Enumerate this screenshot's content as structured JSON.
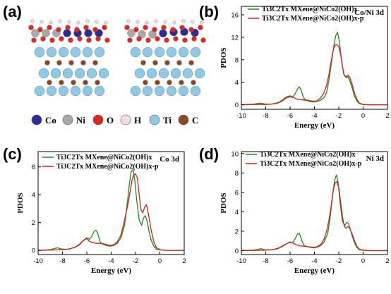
{
  "panels": {
    "a": {
      "label": "(a)",
      "legend": [
        {
          "symbol": "Co",
          "color": "#2b2b9a"
        },
        {
          "symbol": "Ni",
          "color": "#a9a9a9"
        },
        {
          "symbol": "O",
          "color": "#e0281e"
        },
        {
          "symbol": "H",
          "color": "#f2dede"
        },
        {
          "symbol": "Ti",
          "color": "#8ecae6"
        },
        {
          "symbol": "C",
          "color": "#8b4a24"
        }
      ]
    }
  },
  "chart_data": [
    {
      "id": "b",
      "panel_label": "(b)",
      "type": "line",
      "element_label": "Co/Ni 3d",
      "xlabel": "Energy (eV)",
      "ylabel": "PDOS",
      "xlim": [
        -10,
        2
      ],
      "ylim": [
        -0.8,
        17.5
      ],
      "xticks": [
        -10,
        -8,
        -6,
        -4,
        -2,
        0,
        2
      ],
      "yticks": [
        0,
        4,
        8,
        12,
        16
      ],
      "legend_position": "top-right",
      "series": [
        {
          "name": "Ti3C2Tx MXene@NiCo2(OH)x",
          "color": "#1f8a1f",
          "x": [
            -10,
            -9.5,
            -9,
            -8.6,
            -8.4,
            -8.1,
            -7.6,
            -7,
            -6.6,
            -6.3,
            -6,
            -5.8,
            -5.6,
            -5.4,
            -5.25,
            -5.1,
            -4.9,
            -4.7,
            -4.4,
            -4.1,
            -3.8,
            -3.5,
            -3.2,
            -3,
            -2.8,
            -2.6,
            -2.4,
            -2.25,
            -2.1,
            -1.95,
            -1.8,
            -1.6,
            -1.4,
            -1.25,
            -1.1,
            -0.9,
            -0.7,
            -0.5,
            -0.3,
            0,
            0.5,
            1,
            2
          ],
          "y": [
            0,
            0.05,
            0.1,
            0.25,
            0.3,
            0.15,
            0.1,
            0.3,
            0.7,
            1.2,
            1.4,
            1.3,
            1.9,
            2.8,
            3.2,
            2.7,
            1.3,
            0.8,
            0.6,
            0.5,
            0.6,
            0.8,
            1.3,
            2.2,
            4.5,
            7.5,
            10.5,
            12.3,
            12.9,
            11.2,
            8.5,
            5.5,
            4.8,
            5,
            4.3,
            3,
            1.5,
            0.6,
            0.2,
            0.05,
            0,
            0,
            0
          ]
        },
        {
          "name": "Ti3C2Tx MXene@NiCo2(OH)x-p",
          "color": "#d91c1c",
          "x": [
            -10,
            -9,
            -8,
            -7.4,
            -6.9,
            -6.6,
            -6.3,
            -6,
            -5.8,
            -5.5,
            -5.2,
            -4.9,
            -4.5,
            -4.1,
            -3.8,
            -3.5,
            -3.2,
            -3,
            -2.8,
            -2.6,
            -2.45,
            -2.3,
            -2.15,
            -2,
            -1.85,
            -1.7,
            -1.55,
            -1.4,
            -1.25,
            -1.1,
            -0.9,
            -0.7,
            -0.5,
            -0.3,
            0,
            0.5,
            1,
            2
          ],
          "y": [
            0,
            0.05,
            0.05,
            0.15,
            0.45,
            0.9,
            1.4,
            1.6,
            1.4,
            1.05,
            0.9,
            0.85,
            0.8,
            0.6,
            0.7,
            1.2,
            2.2,
            3.5,
            5.5,
            8,
            9.8,
            10.6,
            10.7,
            10.3,
            9,
            6.8,
            5.2,
            5,
            5.3,
            4.9,
            3.6,
            2,
            0.9,
            0.3,
            0.05,
            0,
            0,
            0
          ]
        }
      ]
    },
    {
      "id": "c",
      "panel_label": "(c)",
      "type": "line",
      "element_label": "Co 3d",
      "xlabel": "Energy (eV)",
      "ylabel": "PDOS",
      "xlim": [
        -10,
        2
      ],
      "ylim": [
        -0.3,
        7.1
      ],
      "xticks": [
        -10,
        -8,
        -6,
        -4,
        -2,
        0,
        2
      ],
      "yticks": [
        0,
        2,
        4,
        6
      ],
      "legend_position": "top-left",
      "series": [
        {
          "name": "Ti3C2Tx MXene@NiCo2(OH)x",
          "color": "#1f8a1f",
          "x": [
            -10,
            -9.5,
            -9,
            -8.6,
            -8.4,
            -8.1,
            -7.6,
            -7,
            -6.6,
            -6.3,
            -6,
            -5.8,
            -5.6,
            -5.4,
            -5.25,
            -5.1,
            -4.9,
            -4.7,
            -4.4,
            -4.1,
            -3.8,
            -3.5,
            -3.2,
            -2.9,
            -2.7,
            -2.5,
            -2.35,
            -2.2,
            -2.05,
            -1.9,
            -1.7,
            -1.5,
            -1.35,
            -1.2,
            -1.05,
            -0.9,
            -0.7,
            -0.5,
            -0.3,
            0,
            0.5,
            1,
            2
          ],
          "y": [
            0,
            0.02,
            0.05,
            0.15,
            0.18,
            0.1,
            0.08,
            0.2,
            0.4,
            0.7,
            0.9,
            0.8,
            1.0,
            1.35,
            1.45,
            1.2,
            0.6,
            0.45,
            0.35,
            0.3,
            0.35,
            0.5,
            0.9,
            1.8,
            3.2,
            4.8,
            5.7,
            5.8,
            5.0,
            3.6,
            2.2,
            1.8,
            2.3,
            2.5,
            2.1,
            1.4,
            0.7,
            0.3,
            0.1,
            0.03,
            0,
            0,
            0
          ]
        },
        {
          "name": "Ti3C2Tx MXene@NiCo2(OH)x-p",
          "color": "#d91c1c",
          "x": [
            -10,
            -9,
            -8,
            -7.4,
            -6.9,
            -6.6,
            -6.3,
            -6,
            -5.8,
            -5.5,
            -5.2,
            -4.9,
            -4.5,
            -4.1,
            -3.8,
            -3.5,
            -3.2,
            -3,
            -2.8,
            -2.6,
            -2.45,
            -2.3,
            -2.15,
            -2,
            -1.85,
            -1.7,
            -1.55,
            -1.4,
            -1.25,
            -1.1,
            -0.9,
            -0.7,
            -0.5,
            -0.3,
            0,
            0.5,
            1,
            2
          ],
          "y": [
            0,
            0.02,
            0.05,
            0.1,
            0.25,
            0.45,
            0.7,
            0.85,
            0.65,
            0.55,
            0.5,
            0.5,
            0.45,
            0.35,
            0.4,
            0.6,
            1.1,
            1.8,
            2.6,
            3.4,
            4.2,
            5.0,
            5.4,
            5.5,
            5.2,
            4.0,
            2.9,
            2.7,
            3.1,
            3.3,
            2.4,
            1.4,
            0.6,
            0.2,
            0.05,
            0,
            0,
            0
          ]
        }
      ]
    },
    {
      "id": "d",
      "panel_label": "(d)",
      "type": "line",
      "element_label": "Ni 3d",
      "xlabel": "Energy (eV)",
      "ylabel": "PDOS",
      "xlim": [
        -10,
        2
      ],
      "ylim": [
        -0.4,
        10.2
      ],
      "xticks": [
        -10,
        -8,
        -6,
        -4,
        -2,
        0,
        2
      ],
      "yticks": [
        0,
        2,
        4,
        6,
        8,
        10
      ],
      "legend_position": "top-left",
      "series": [
        {
          "name": "Ti3C2Tx MXene@NiCo2(OH)x",
          "color": "#1f8a1f",
          "x": [
            -10,
            -9.5,
            -9,
            -8.6,
            -8.4,
            -8.1,
            -7.6,
            -7,
            -6.6,
            -6.3,
            -6,
            -5.8,
            -5.6,
            -5.4,
            -5.25,
            -5.1,
            -4.9,
            -4.7,
            -4.4,
            -4.1,
            -3.8,
            -3.5,
            -3.2,
            -2.9,
            -2.7,
            -2.5,
            -2.35,
            -2.2,
            -2.05,
            -1.9,
            -1.7,
            -1.5,
            -1.35,
            -1.2,
            -1.05,
            -0.9,
            -0.7,
            -0.5,
            -0.3,
            0,
            0.5,
            1,
            2
          ],
          "y": [
            0,
            0.02,
            0.05,
            0.15,
            0.2,
            0.1,
            0.08,
            0.2,
            0.45,
            0.7,
            0.9,
            0.8,
            1.2,
            1.7,
            1.8,
            1.3,
            0.6,
            0.45,
            0.35,
            0.3,
            0.35,
            0.5,
            0.9,
            1.8,
            3.5,
            5.8,
            7.2,
            7.8,
            7.0,
            5.0,
            3.0,
            2.6,
            2.9,
            2.8,
            2.2,
            1.5,
            0.8,
            0.3,
            0.1,
            0.03,
            0,
            0,
            0
          ]
        },
        {
          "name": "Ti3C2Tx MXene@NiCo2(OH)x-p",
          "color": "#d91c1c",
          "x": [
            -10,
            -9,
            -8,
            -7.4,
            -6.9,
            -6.6,
            -6.3,
            -6,
            -5.8,
            -5.5,
            -5.2,
            -4.9,
            -4.5,
            -4.1,
            -3.8,
            -3.5,
            -3.2,
            -3,
            -2.8,
            -2.6,
            -2.45,
            -2.3,
            -2.15,
            -2,
            -1.85,
            -1.7,
            -1.55,
            -1.4,
            -1.25,
            -1.1,
            -0.9,
            -0.7,
            -0.5,
            -0.3,
            0,
            0.5,
            1,
            2
          ],
          "y": [
            0,
            0.02,
            0.05,
            0.1,
            0.3,
            0.5,
            0.7,
            0.85,
            0.8,
            0.6,
            0.5,
            0.45,
            0.4,
            0.35,
            0.4,
            0.6,
            1.2,
            2.0,
            3.2,
            4.8,
            6.2,
            7.0,
            7.1,
            6.5,
            5.0,
            3.5,
            2.5,
            2.3,
            2.5,
            2.3,
            1.7,
            1.0,
            0.4,
            0.15,
            0.05,
            0,
            0,
            0
          ]
        }
      ]
    }
  ]
}
